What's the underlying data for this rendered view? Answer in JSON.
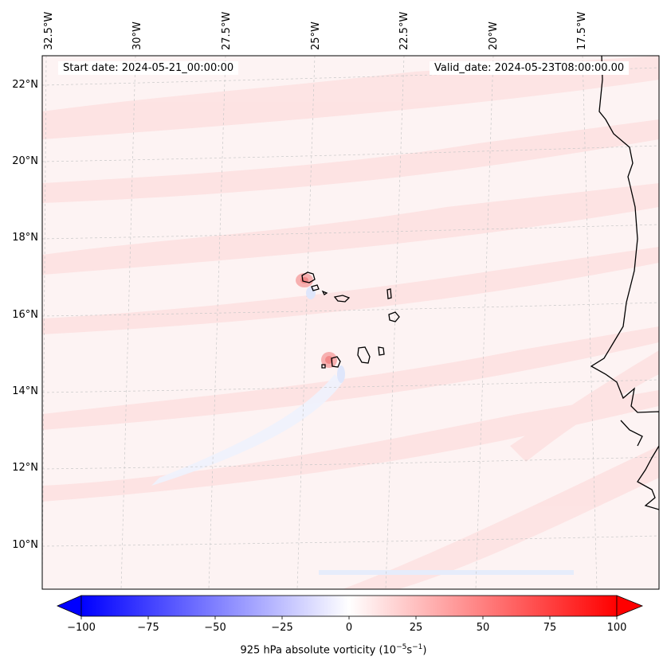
{
  "header": {
    "start_date": "Start date: 2024-05-21_00:00:00",
    "valid_date": "Valid_date: 2024-05-23T08:00:00.00"
  },
  "axes": {
    "longitude_ticks": [
      "32.5°W",
      "30°W",
      "27.5°W",
      "25°W",
      "22.5°W",
      "20°W",
      "17.5°W"
    ],
    "latitude_ticks": [
      "22°N",
      "20°N",
      "18°N",
      "16°N",
      "14°N",
      "12°N",
      "10°N"
    ]
  },
  "colorbar": {
    "ticks": [
      "−100",
      "−75",
      "−50",
      "−25",
      "0",
      "25",
      "50",
      "75",
      "100"
    ],
    "label": "925 hPa absolute vorticity (10",
    "label_unit_1": "−5",
    "label_unit_mid": "s",
    "label_unit_2": "−1",
    "label_end": ")",
    "min": -100,
    "max": 100,
    "low_color": "#0000ff",
    "high_color": "#ff0000"
  },
  "map": {
    "features": [
      "Cape Verde islands",
      "West African coastline"
    ],
    "background_tint": "#fdf2f2"
  }
}
